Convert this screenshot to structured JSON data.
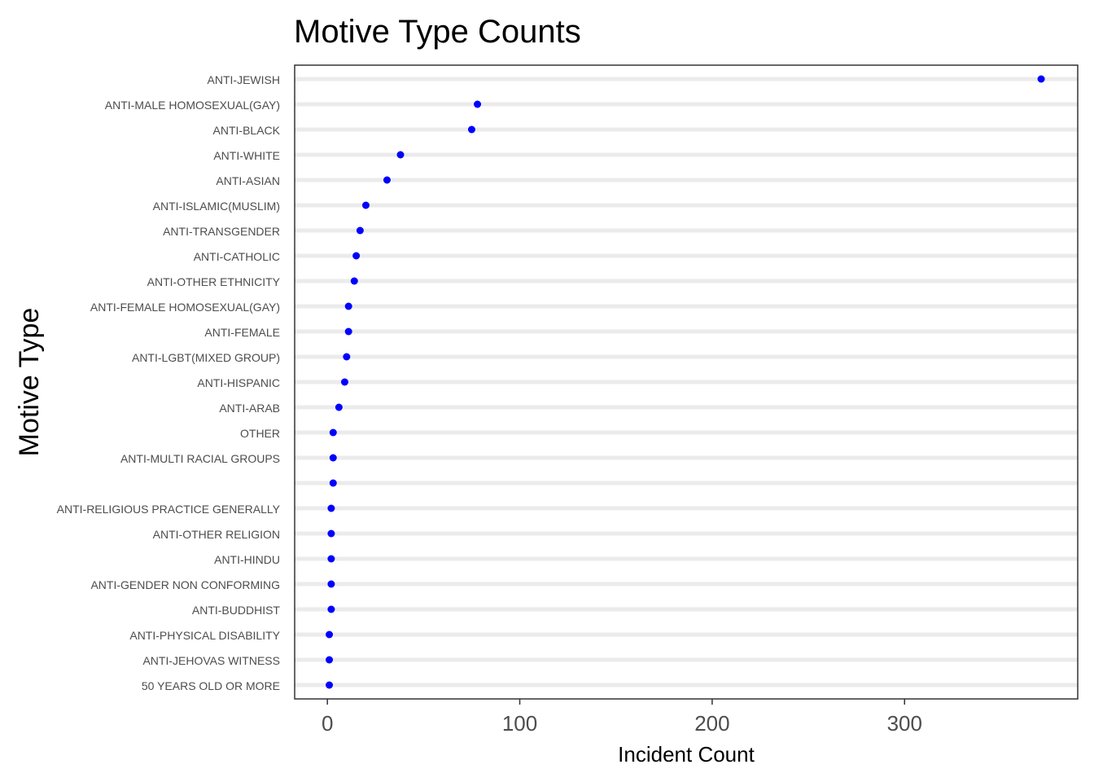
{
  "chart_data": {
    "type": "scatter",
    "title": "Motive Type Counts",
    "xlabel": "Incident Count",
    "ylabel": "Motive Type",
    "xlim": [
      -17,
      390
    ],
    "xticks": [
      0,
      100,
      200,
      300
    ],
    "point_color": "#0000ff",
    "gridline_color": "#ebebeb",
    "grid": "horizontal major",
    "categories": [
      "ANTI-JEWISH",
      "ANTI-MALE HOMOSEXUAL(GAY)",
      "ANTI-BLACK",
      "ANTI-WHITE",
      "ANTI-ASIAN",
      "ANTI-ISLAMIC(MUSLIM)",
      "ANTI-TRANSGENDER",
      "ANTI-CATHOLIC",
      "ANTI-OTHER ETHNICITY",
      "ANTI-FEMALE HOMOSEXUAL(GAY)",
      "ANTI-FEMALE",
      "ANTI-LGBT(MIXED GROUP)",
      "ANTI-HISPANIC",
      "ANTI-ARAB",
      "OTHER",
      "ANTI-MULTI RACIAL GROUPS",
      "",
      "ANTI-RELIGIOUS PRACTICE GENERALLY",
      "ANTI-OTHER RELIGION",
      "ANTI-HINDU",
      "ANTI-GENDER NON CONFORMING",
      "ANTI-BUDDHIST",
      "ANTI-PHYSICAL DISABILITY",
      "ANTI-JEHOVAS WITNESS",
      "50 YEARS OLD OR MORE"
    ],
    "values": [
      371,
      78,
      75,
      38,
      31,
      20,
      17,
      15,
      14,
      11,
      11,
      10,
      9,
      6,
      3,
      3,
      3,
      2,
      2,
      2,
      2,
      2,
      1,
      1,
      1
    ]
  }
}
